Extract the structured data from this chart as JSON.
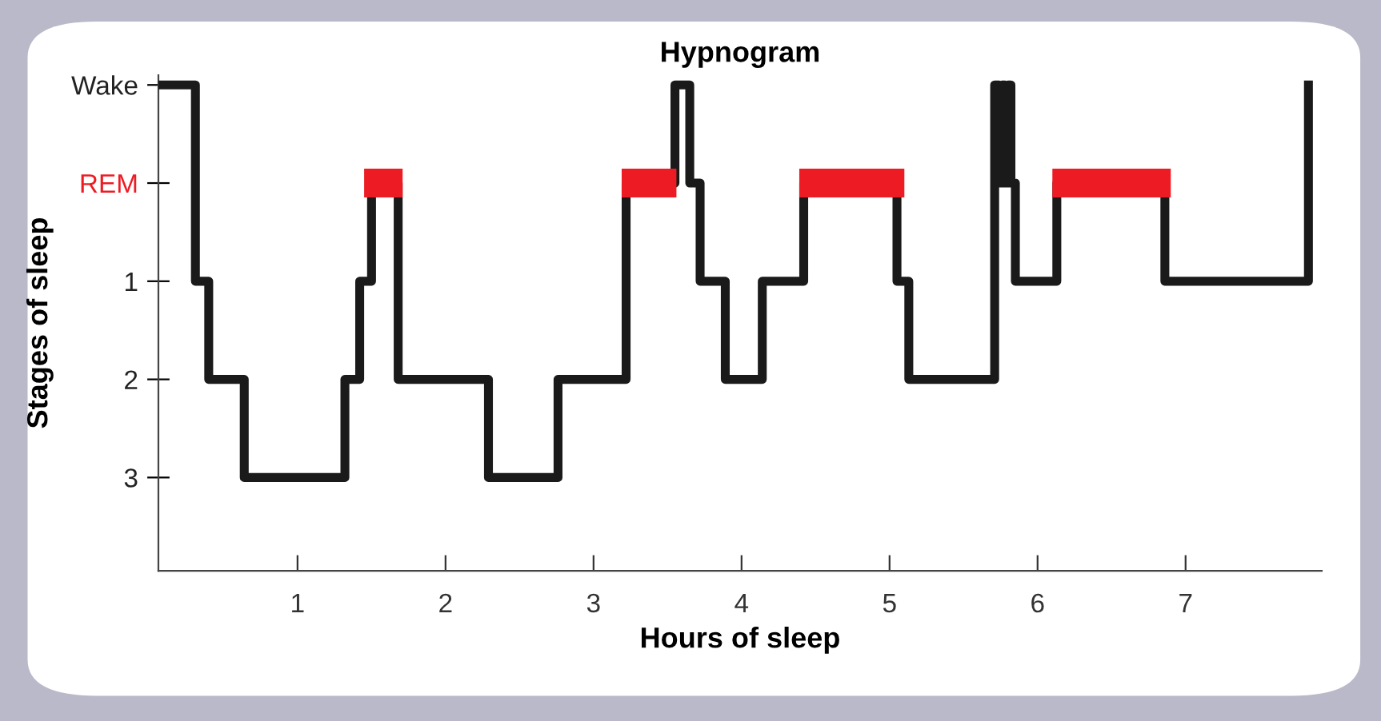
{
  "chart_data": {
    "type": "step",
    "title": "Hypnogram",
    "xlabel": "Hours of sleep",
    "ylabel": "Stages of sleep",
    "xlim": [
      0.06,
      7.92
    ],
    "xticks": [
      1,
      2,
      3,
      4,
      5,
      6,
      7
    ],
    "ylim": [
      3.95,
      -1.1
    ],
    "yticks": [
      {
        "value": -1,
        "label": "Wake"
      },
      {
        "value": 0,
        "label": "REM"
      },
      1,
      2,
      3
    ],
    "grid": false,
    "legend": false,
    "line_style": "solid",
    "marker": "none",
    "series": [
      {
        "color": "#1a1a1a",
        "x": [
          0.06,
          0.31,
          0.4,
          0.64,
          1.32,
          1.42,
          1.5,
          1.68,
          2.29,
          2.76,
          3.22,
          3.55,
          3.65,
          3.72,
          3.89,
          4.14,
          4.42,
          5.05,
          5.13,
          5.71,
          5.74,
          5.76,
          5.78,
          5.8,
          5.82,
          5.85,
          6.13,
          6.86,
          7.83
        ],
        "values": [
          -1,
          1,
          2,
          3,
          2,
          1,
          0,
          2,
          3,
          2,
          0,
          -1,
          0,
          1,
          2,
          1,
          0,
          1,
          2,
          -1,
          0,
          -1,
          0,
          -1,
          0,
          1,
          0,
          1,
          -1
        ]
      },
      {
        "type": "line",
        "color": "#ed1c24",
        "x": [
          1.45,
          1.71,
          1.72,
          3.19,
          3.56,
          3.57,
          4.39,
          5.1,
          5.11,
          6.1,
          6.9
        ],
        "values": [
          0,
          0,
          null,
          0,
          0,
          null,
          0,
          0,
          null,
          0,
          0
        ]
      }
    ]
  }
}
